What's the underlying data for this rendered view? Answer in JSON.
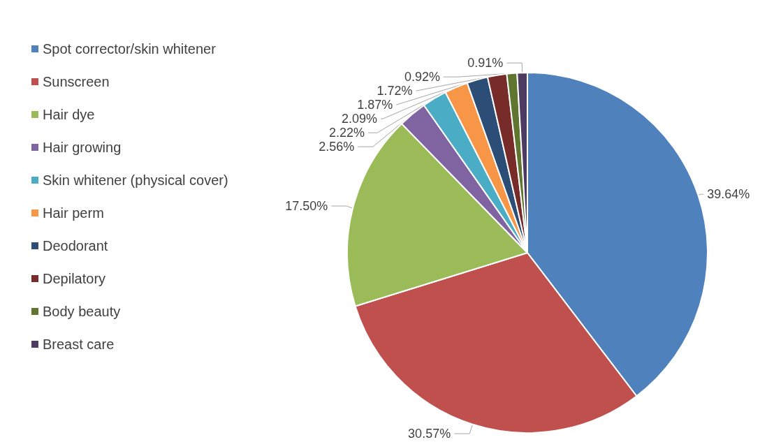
{
  "chart_data": {
    "type": "pie",
    "categories": [
      "Spot corrector/skin whitener",
      "Sunscreen",
      "Hair dye",
      "Hair growing",
      "Skin whitener (physical cover)",
      "Hair perm",
      "Deodorant",
      "Depilatory",
      "Body beauty",
      "Breast care"
    ],
    "values": [
      39.64,
      30.57,
      17.5,
      2.56,
      2.22,
      2.09,
      1.87,
      1.72,
      0.92,
      0.91
    ],
    "value_labels": [
      "39.64%",
      "30.57%",
      "17.50%",
      "2.56%",
      "2.22%",
      "2.09%",
      "1.87%",
      "1.72%",
      "0.92%",
      "0.91%"
    ],
    "colors": [
      "#4f81bd",
      "#c0504d",
      "#9bbb59",
      "#8064a2",
      "#4bacc6",
      "#f79646",
      "#2c4d75",
      "#772c2a",
      "#5f7530",
      "#4d3b62"
    ],
    "legend": "left"
  }
}
